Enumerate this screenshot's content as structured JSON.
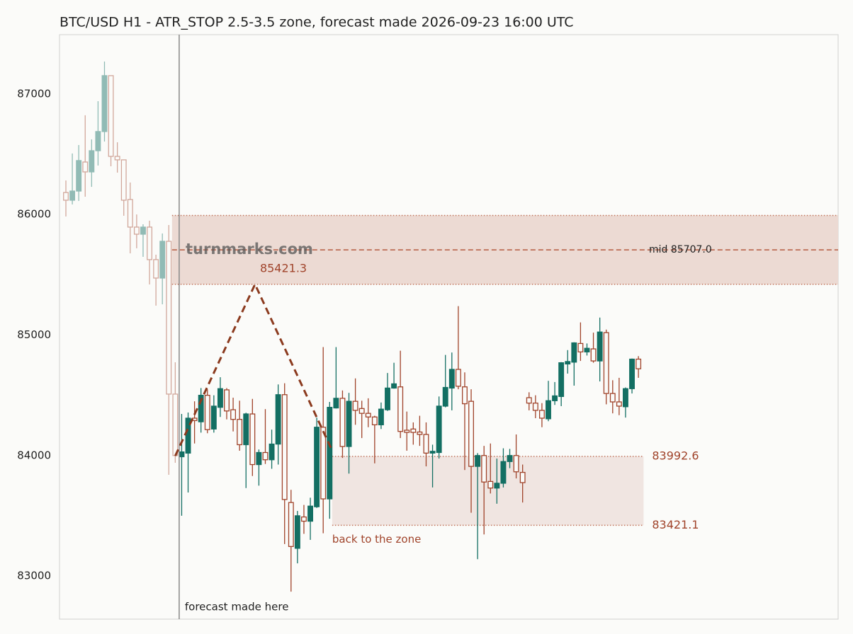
{
  "chart_data": {
    "type": "candlestick",
    "title": "BTC/USD H1 - ATR_STOP 2.5-3.5 zone, forecast made 2026-09-23 16:00 UTC",
    "ylim": [
      82642,
      87493
    ],
    "yticks": [
      83000,
      84000,
      85000,
      86000,
      87000
    ],
    "up_color": "#136f63",
    "down_color": "#a0432a",
    "history": {
      "open": [
        86183,
        86119,
        86195,
        86436,
        86354,
        86530,
        86689,
        87153,
        86483,
        86454,
        86125,
        85896,
        85837,
        85896,
        85626,
        85473,
        85778,
        84510
      ],
      "high": [
        86283,
        86507,
        86577,
        86824,
        86624,
        86941,
        87270,
        87153,
        86600,
        86454,
        86266,
        86001,
        85919,
        85949,
        85667,
        85843,
        85913,
        84774
      ],
      "low": [
        85984,
        86084,
        86113,
        86148,
        86230,
        86407,
        86606,
        86401,
        86348,
        85990,
        85678,
        85720,
        85649,
        85420,
        85244,
        85255,
        83840,
        83940
      ],
      "close": [
        86119,
        86195,
        86448,
        86354,
        86530,
        86689,
        87153,
        86483,
        86454,
        86119,
        85896,
        85837,
        85896,
        85626,
        85473,
        85778,
        84510,
        84000
      ]
    },
    "actual": {
      "open": [
        83990,
        84020,
        84310,
        84280,
        84500,
        84220,
        84400,
        84545,
        84380,
        84300,
        84090,
        84345,
        83925,
        84025,
        83965,
        84095,
        84505,
        83610,
        83230,
        83490,
        83455,
        83575,
        84235,
        83640,
        84395,
        84475,
        84075,
        84450,
        84390,
        84350,
        84320,
        84255,
        84380,
        84560,
        84570,
        84210,
        84220,
        84195,
        84175,
        84020,
        84025,
        84410,
        84560,
        84715,
        84570,
        84450,
        83910,
        84000,
        83785,
        83730,
        83770,
        83950,
        84000,
        83860,
        84480,
        84435,
        84375,
        84305,
        84455,
        84490,
        84760,
        84775,
        84930,
        84860,
        84885,
        84785,
        85020,
        84515,
        84445,
        84405,
        84555,
        84800
      ],
      "high": [
        84345,
        84357,
        84450,
        84560,
        84550,
        84500,
        84650,
        84560,
        84480,
        84455,
        84355,
        84470,
        84050,
        84385,
        84215,
        84590,
        84600,
        83715,
        83540,
        83590,
        83650,
        84315,
        84900,
        84445,
        84900,
        84540,
        84520,
        84640,
        84455,
        84475,
        84330,
        84440,
        84685,
        84770,
        84870,
        84365,
        84275,
        84330,
        84275,
        84090,
        84490,
        84835,
        84855,
        85240,
        84690,
        84550,
        84020,
        84080,
        84100,
        83975,
        84060,
        84055,
        84175,
        83925,
        84525,
        84500,
        84435,
        84620,
        84610,
        84775,
        84875,
        84940,
        85105,
        84930,
        85020,
        85145,
        85045,
        84625,
        84645,
        84565,
        84805,
        84825
      ],
      "low": [
        83500,
        83693,
        84100,
        84190,
        84185,
        84190,
        84320,
        84300,
        84200,
        84040,
        83730,
        83830,
        83750,
        83930,
        83890,
        83925,
        83265,
        82870,
        83105,
        83350,
        83300,
        83565,
        83355,
        83475,
        84390,
        83980,
        83850,
        84255,
        84145,
        84235,
        83935,
        84220,
        84370,
        84555,
        84145,
        84040,
        84090,
        84080,
        83910,
        83735,
        83975,
        84400,
        84375,
        84550,
        83880,
        83525,
        83140,
        83345,
        83685,
        83600,
        83735,
        83895,
        83810,
        83610,
        84375,
        84310,
        84235,
        84285,
        84420,
        84410,
        84680,
        84580,
        84785,
        84830,
        84770,
        84615,
        84425,
        84350,
        84335,
        84315,
        84515,
        84645
      ],
      "close": [
        84030,
        84310,
        84290,
        84500,
        84215,
        84410,
        84555,
        84370,
        84300,
        84090,
        84345,
        83925,
        84025,
        83965,
        84095,
        84505,
        83635,
        83245,
        83500,
        83455,
        83580,
        84235,
        83640,
        84400,
        84475,
        84075,
        84450,
        84375,
        84350,
        84320,
        84255,
        84385,
        84560,
        84595,
        84200,
        84192,
        84192,
        84175,
        84020,
        84035,
        84410,
        84565,
        84715,
        84575,
        84430,
        83910,
        84000,
        83780,
        83730,
        83770,
        83950,
        84000,
        83865,
        83775,
        84435,
        84375,
        84310,
        84455,
        84495,
        84770,
        84780,
        84935,
        84860,
        84890,
        84785,
        85025,
        84515,
        84445,
        84410,
        84555,
        84800,
        84720
      ]
    },
    "forecast": {
      "x": [
        17,
        29.4,
        41.4
      ],
      "values": [
        83997,
        85421.3,
        84040
      ],
      "color": "#8b3a1e"
    },
    "zone": {
      "low": 85421.3,
      "high": 85992.7,
      "mid": 85707.0,
      "mid_label": "mid 85707.0",
      "x_start": 16.5,
      "color": "#ecdad3"
    },
    "target_zone": {
      "low": 83421.1,
      "high": 83992.6,
      "x": [
        41.4,
        89.8
      ],
      "label": "back to the zone",
      "color": "#f0e5e1"
    },
    "watermark": "turnmarks.com",
    "forecast_marker_label": "forecast made here"
  }
}
